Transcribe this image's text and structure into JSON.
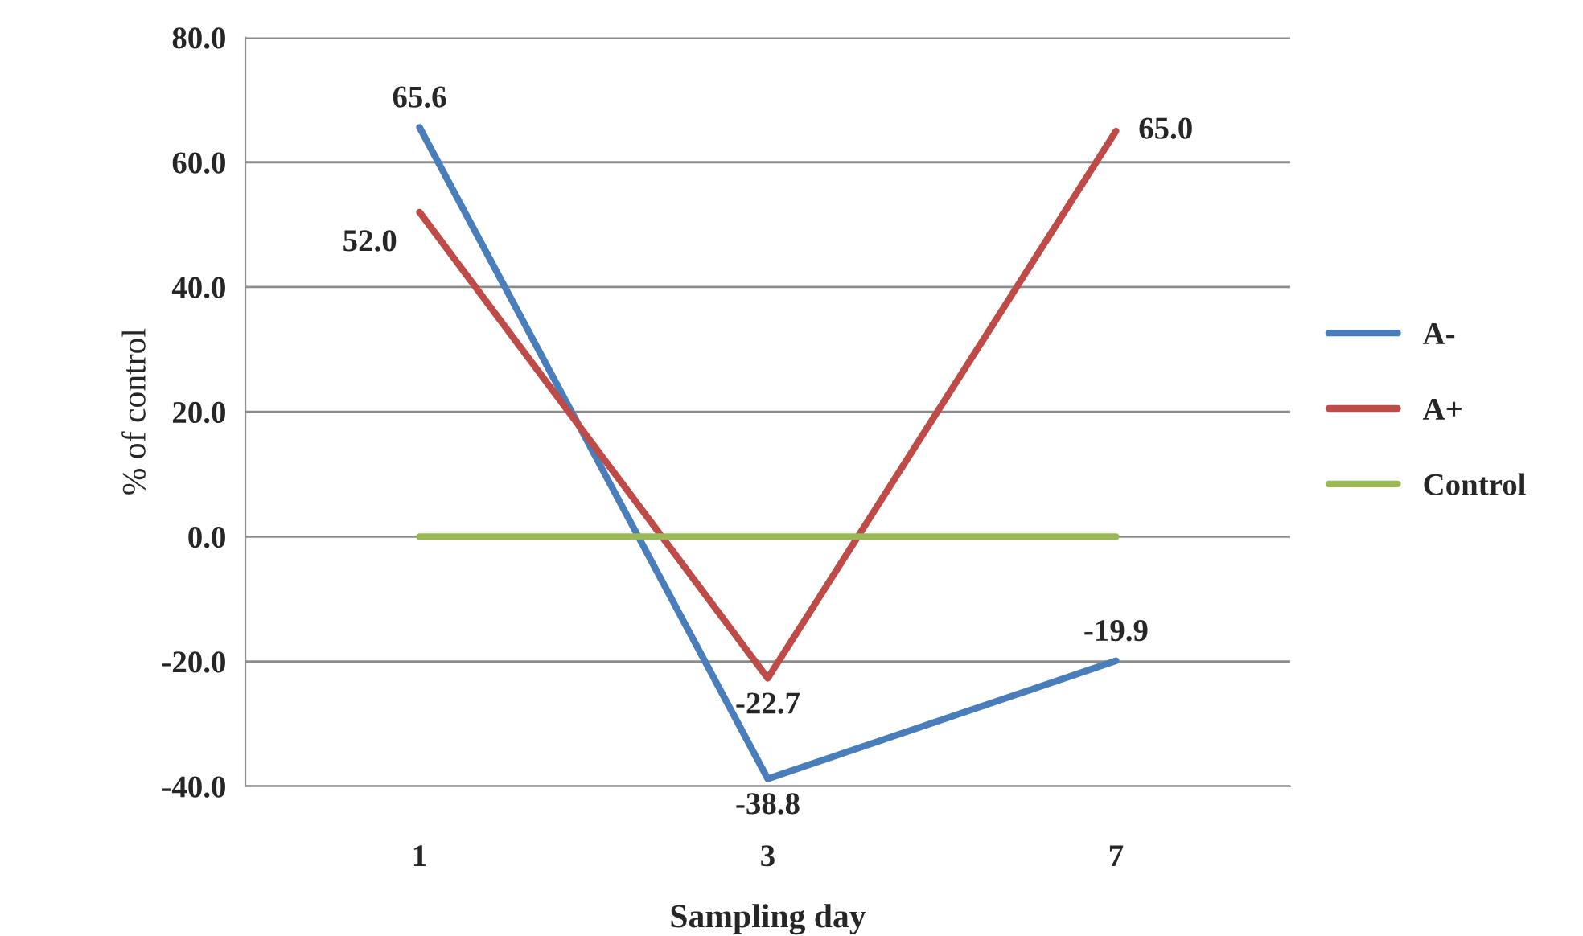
{
  "chart_data": {
    "type": "line",
    "xlabel": "Sampling day",
    "ylabel": "% of control",
    "categories": [
      "1",
      "3",
      "7"
    ],
    "series": [
      {
        "name": "A-",
        "color": "#4a7ebb",
        "values": [
          65.6,
          -38.8,
          -19.9
        ],
        "value_labels": [
          "65.6",
          "-38.8",
          "-19.9"
        ]
      },
      {
        "name": "A+",
        "color": "#be4b48",
        "values": [
          52.0,
          -22.7,
          65.0
        ],
        "value_labels": [
          "52.0",
          "-22.7",
          "65.0"
        ]
      },
      {
        "name": "Control",
        "color": "#98b954",
        "values": [
          0.0,
          0.0,
          0.0
        ]
      }
    ],
    "ylim": [
      -40,
      80
    ],
    "yticks": [
      {
        "value": -40,
        "label": "-40.0"
      },
      {
        "value": -20,
        "label": "-20.0"
      },
      {
        "value": 0,
        "label": "0.0"
      },
      {
        "value": 20,
        "label": "20.0"
      },
      {
        "value": 40,
        "label": "40.0"
      },
      {
        "value": 60,
        "label": "60.0"
      },
      {
        "value": 80,
        "label": "80.0"
      }
    ],
    "grid": "y",
    "legend": "right",
    "marker": "none",
    "line_style": "solid"
  }
}
